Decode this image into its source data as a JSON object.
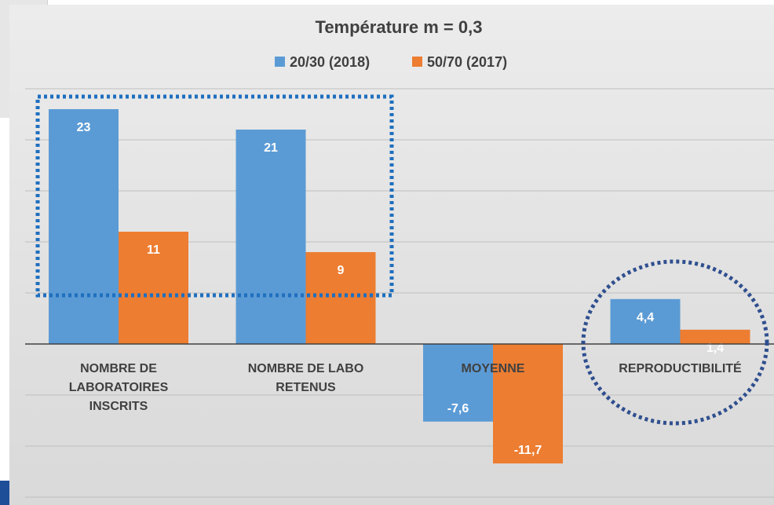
{
  "colors": {
    "series1": "#5b9bd5",
    "series2": "#ed7d31",
    "highlight": "#1f6fbf",
    "circle": "#2f4f8f",
    "gridline": "#bfbfbf",
    "axis": "#404040"
  },
  "chart_data": {
    "type": "bar",
    "title": "Température m = 0,3",
    "legend_position": "top",
    "grid": true,
    "ylim": [
      -14,
      25
    ],
    "categories": [
      [
        "NOMBRE DE",
        "LABORATOIRES",
        "INSCRITS"
      ],
      [
        "NOMBRE DE LABO",
        "RETENUS"
      ],
      [
        "MOYENNE"
      ],
      [
        "REPRODUCTIBILITÉ"
      ]
    ],
    "series": [
      {
        "name": "20/30 (2018)",
        "values": [
          23,
          21,
          -7.6,
          4.4
        ],
        "labels": [
          "23",
          "21",
          "-7,6",
          "4,4"
        ]
      },
      {
        "name": "50/70 (2017)",
        "values": [
          11,
          9,
          -11.7,
          1.4
        ],
        "labels": [
          "11",
          "9",
          "-11,7",
          "1,4"
        ]
      }
    ]
  }
}
